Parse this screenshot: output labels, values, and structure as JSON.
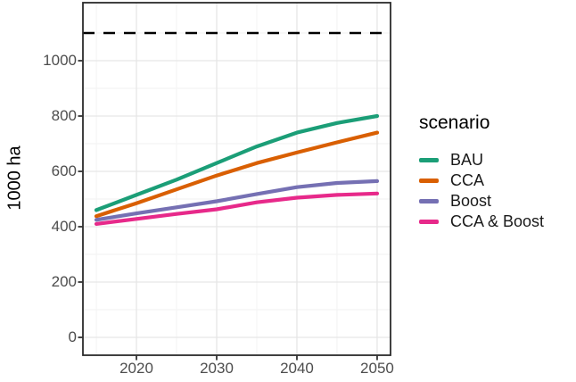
{
  "chart_data": {
    "type": "line",
    "title": "",
    "xlabel": "",
    "ylabel": "1000 ha",
    "x": [
      2015,
      2020,
      2025,
      2030,
      2035,
      2040,
      2045,
      2050
    ],
    "series": [
      {
        "name": "BAU",
        "color": "#1b9e77",
        "values": [
          460,
          515,
          570,
          630,
          690,
          740,
          775,
          800
        ]
      },
      {
        "name": "CCA",
        "color": "#d95f02",
        "values": [
          438,
          485,
          535,
          585,
          630,
          668,
          705,
          740
        ]
      },
      {
        "name": "Boost",
        "color": "#7570b3",
        "values": [
          425,
          448,
          470,
          492,
          518,
          543,
          558,
          565
        ]
      },
      {
        "name": "CCA & Boost",
        "color": "#e7298a",
        "values": [
          410,
          428,
          446,
          463,
          488,
          505,
          515,
          520
        ]
      }
    ],
    "reference_line": {
      "value": 1100,
      "style": "dashed",
      "color": "#000000"
    },
    "x_ticks": [
      2020,
      2030,
      2040,
      2050
    ],
    "y_ticks": [
      0,
      200,
      400,
      600,
      800,
      1000
    ],
    "x_minor": [
      2015,
      2025,
      2035,
      2045
    ],
    "y_minor": [
      100,
      300,
      500,
      700,
      900,
      1100
    ],
    "xlim": [
      2013.33,
      2051.67
    ],
    "ylim": [
      -64.5,
      1209.7
    ],
    "grid": true,
    "legend": {
      "title": "scenario",
      "position": "right"
    },
    "style": {
      "panel_border": "#2b2b2b",
      "grid_major": "#e6e6e6",
      "grid_minor": "#f2f2f2",
      "tick_color": "#333333",
      "tick_label_color": "#4d4d4d"
    }
  }
}
